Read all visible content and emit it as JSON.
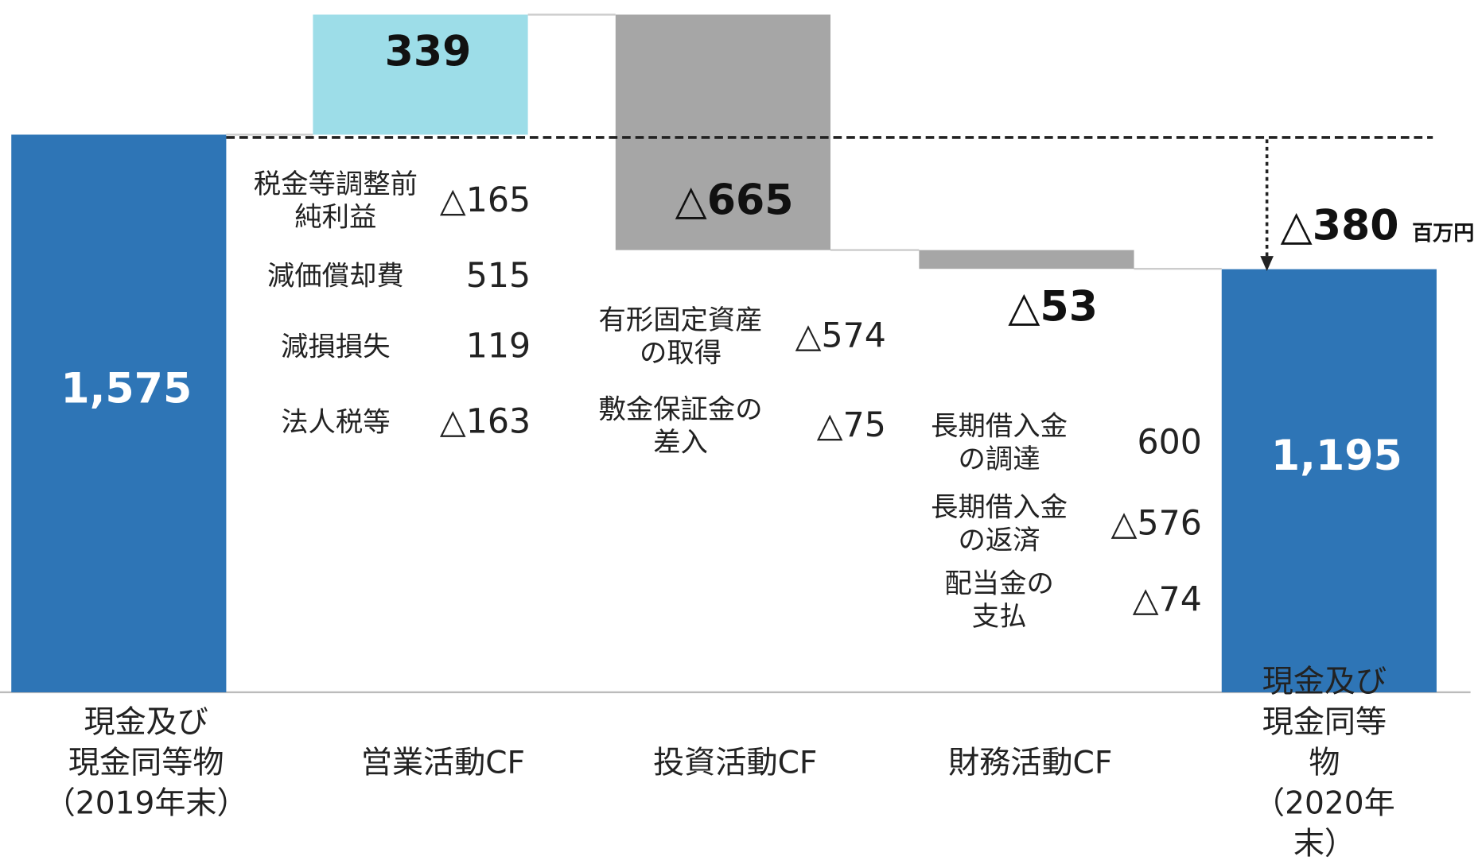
{
  "chart_data": {
    "type": "waterfall",
    "categories": [
      "現金及び\n現金同等物\n（2019年末）",
      "営業活動CF",
      "投資活動CF",
      "財務活動CF",
      "現金及び\n現金同等物\n（2020年末）"
    ],
    "values": [
      1575,
      339,
      -665,
      -53,
      1195
    ],
    "value_labels": [
      "1,575",
      "339",
      "△665",
      "△53",
      "1,195"
    ],
    "totals": [
      true,
      false,
      false,
      false,
      true
    ],
    "colors": [
      "#2e75b6",
      "#9ddde8",
      "#a6a6a6",
      "#a6a6a6",
      "#2e75b6"
    ],
    "ylim": [
      0,
      1950
    ],
    "change": {
      "value": -380,
      "label": "△380",
      "unit": "百万円"
    },
    "details": [
      [],
      [
        {
          "label": "税金等調整前\n純利益",
          "value": -165,
          "value_label": "△165"
        },
        {
          "label": "減価償却費",
          "value": 515
        },
        {
          "label": "減損損失",
          "value": 119
        },
        {
          "label": "法人税等",
          "value": -163,
          "value_label": "△163"
        }
      ],
      [
        {
          "label": "有形固定資産\nの取得",
          "value": -574,
          "value_label": "△574"
        },
        {
          "label": "敷金保証金の\n差入",
          "value": -75,
          "value_label": "△75"
        }
      ],
      [
        {
          "label": "長期借入金\nの調達",
          "value": 600
        },
        {
          "label": "長期借入金\nの返済",
          "value": -576,
          "value_label": "△576"
        },
        {
          "label": "配当金の\n支払",
          "value": -74,
          "value_label": "△74"
        }
      ],
      []
    ]
  }
}
